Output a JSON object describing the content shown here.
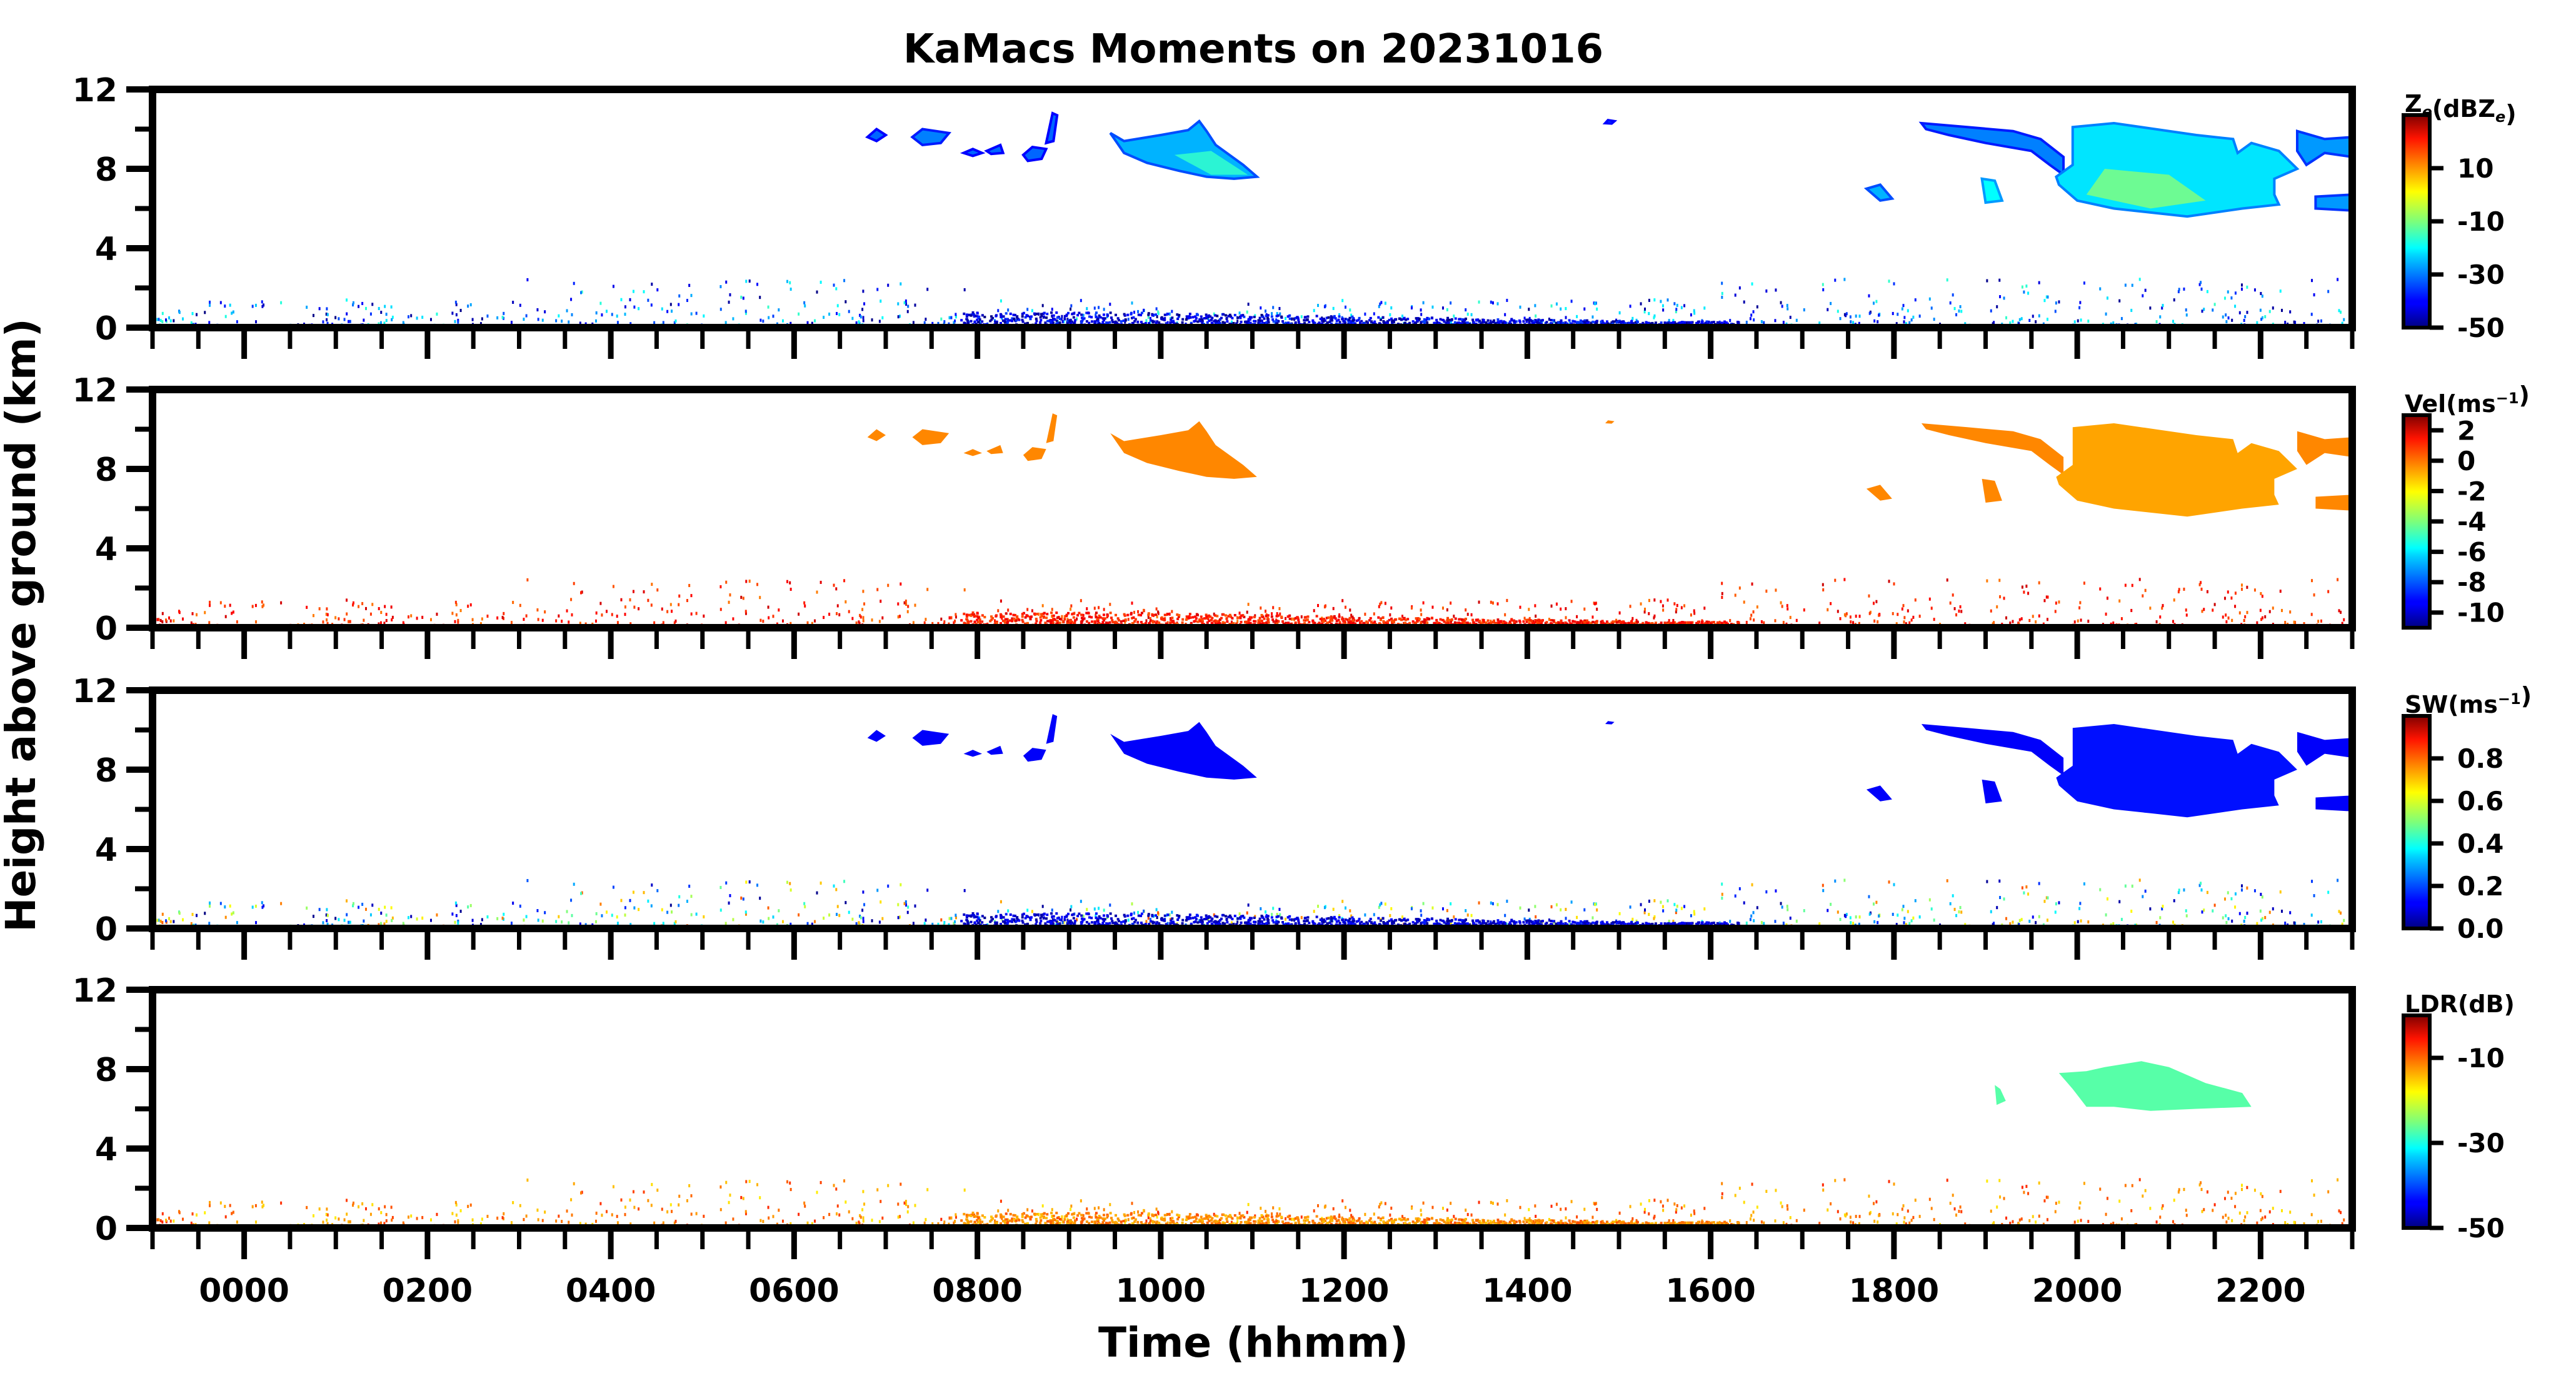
{
  "chart_data": {
    "type": "heatmap",
    "title": "KaMacs Moments on 20231016",
    "xlabel": "Time (hhmm)",
    "ylabel": "Height above ground (km)",
    "xlim_hours": [
      -1,
      23
    ],
    "x_major_ticks_hours": [
      0,
      2,
      4,
      6,
      8,
      10,
      12,
      14,
      16,
      18,
      20,
      22
    ],
    "x_tick_labels": [
      "0000",
      "0200",
      "0400",
      "0600",
      "0800",
      "1000",
      "1200",
      "1400",
      "1600",
      "1800",
      "2000",
      "2200"
    ],
    "x_minor_step_hours": 0.5,
    "ylim_km": [
      0,
      12
    ],
    "y_major_ticks": [
      0,
      4,
      8,
      12
    ],
    "y_tick_labels": [
      "0",
      "4",
      "8",
      "12"
    ],
    "y_minor_ticks": [
      2,
      6,
      10
    ],
    "colormap": "jet",
    "panels": [
      {
        "key": "ze",
        "colorbar_label": [
          {
            "t": "Z",
            "s": ""
          },
          {
            "t": "e",
            "s": "sub"
          },
          {
            "t": "(dBZ",
            "s": ""
          },
          {
            "t": "e",
            "s": "sub"
          },
          {
            "t": ")",
            "s": ""
          }
        ],
        "vmin": -50,
        "vmax": 30,
        "ticks": [
          10,
          -10,
          -30,
          -50
        ],
        "tick_labels": [
          "10",
          "-10",
          "-30",
          "-50"
        ],
        "clutter_range": [
          -50,
          -15
        ],
        "surface_band_range": [
          -50,
          -35
        ]
      },
      {
        "key": "vel",
        "colorbar_label": [
          {
            "t": "Vel(ms",
            "s": ""
          },
          {
            "t": "−1",
            "s": "sup"
          },
          {
            "t": ")",
            "s": ""
          }
        ],
        "vmin": -11,
        "vmax": 3,
        "ticks": [
          2,
          0,
          -2,
          -4,
          -6,
          -8,
          -10
        ],
        "tick_labels": [
          "2",
          "0",
          "-2",
          "-4",
          "-6",
          "-8",
          "-10"
        ],
        "clutter_range": [
          -0.5,
          2
        ],
        "surface_band_range": [
          0,
          1.8
        ]
      },
      {
        "key": "sw",
        "colorbar_label": [
          {
            "t": "SW(ms",
            "s": ""
          },
          {
            "t": "−1",
            "s": "sup"
          },
          {
            "t": ")",
            "s": ""
          }
        ],
        "vmin": 0,
        "vmax": 1.0,
        "ticks": [
          0.8,
          0.6,
          0.4,
          0.2,
          0.0
        ],
        "tick_labels": [
          "0.8",
          "0.6",
          "0.4",
          "0.2",
          "0.0"
        ],
        "clutter_range": [
          0.0,
          0.8
        ],
        "surface_band_range": [
          0.02,
          0.15
        ]
      },
      {
        "key": "ldr",
        "colorbar_label": [
          {
            "t": "LDR(dB)",
            "s": ""
          }
        ],
        "vmin": -50,
        "vmax": 0,
        "ticks": [
          -10,
          -30,
          -50
        ],
        "tick_labels": [
          "-10",
          "-30",
          "-50"
        ],
        "clutter_range": [
          -18,
          -8
        ],
        "surface_band_range": [
          -16,
          -10
        ]
      }
    ],
    "surface_band": {
      "t_start": 7.8,
      "t_end": 16.3,
      "top_km": 0.7
    },
    "clutter": {
      "t_start": -1,
      "t_end": 23,
      "top_km": 2.2,
      "count": 900
    },
    "echoes": [
      {
        "name": "cirrus-0930-1100",
        "poly": [
          [
            9.45,
            9.8
          ],
          [
            9.6,
            9.4
          ],
          [
            10.0,
            9.7
          ],
          [
            10.3,
            9.95
          ],
          [
            10.42,
            10.4
          ],
          [
            10.5,
            9.9
          ],
          [
            10.6,
            9.2
          ],
          [
            10.9,
            8.2
          ],
          [
            11.05,
            7.6
          ],
          [
            10.8,
            7.5
          ],
          [
            10.5,
            7.6
          ],
          [
            10.2,
            7.9
          ],
          [
            9.85,
            8.3
          ],
          [
            9.6,
            8.8
          ]
        ],
        "values": {
          "ze": -26,
          "vel": -0.6,
          "sw": 0.12
        },
        "core": {
          "poly": [
            [
              10.15,
              8.7
            ],
            [
              10.55,
              8.9
            ],
            [
              10.95,
              7.7
            ],
            [
              10.55,
              7.7
            ]
          ],
          "ze": -16
        }
      },
      {
        "name": "cloud-0720",
        "poly": [
          [
            7.29,
            9.6
          ],
          [
            7.4,
            10.0
          ],
          [
            7.55,
            9.9
          ],
          [
            7.69,
            9.8
          ],
          [
            7.6,
            9.3
          ],
          [
            7.4,
            9.2
          ]
        ],
        "values": {
          "ze": -30,
          "vel": -0.6,
          "sw": 0.12
        }
      },
      {
        "name": "cloud-0650",
        "poly": [
          [
            6.8,
            9.6
          ],
          [
            6.9,
            10.0
          ],
          [
            7.0,
            9.7
          ],
          [
            6.9,
            9.4
          ]
        ],
        "values": {
          "ze": -32,
          "vel": -0.6,
          "sw": 0.12
        }
      },
      {
        "name": "cloud-0750",
        "poly": [
          [
            7.85,
            8.8
          ],
          [
            7.95,
            9.0
          ],
          [
            8.05,
            8.8
          ],
          [
            7.95,
            8.65
          ]
        ],
        "values": {
          "ze": -32,
          "vel": -0.6,
          "sw": 0.12
        }
      },
      {
        "name": "cloud-0810",
        "poly": [
          [
            8.1,
            8.9
          ],
          [
            8.25,
            9.2
          ],
          [
            8.28,
            8.8
          ],
          [
            8.15,
            8.75
          ]
        ],
        "values": {
          "ze": -32,
          "vel": -0.6,
          "sw": 0.12
        }
      },
      {
        "name": "cloud-0830",
        "poly": [
          [
            8.5,
            8.7
          ],
          [
            8.6,
            9.1
          ],
          [
            8.75,
            9.0
          ],
          [
            8.7,
            8.5
          ],
          [
            8.55,
            8.4
          ]
        ],
        "values": {
          "ze": -32,
          "vel": -0.6,
          "sw": 0.12
        }
      },
      {
        "name": "streak-0850",
        "poly": [
          [
            8.75,
            9.3
          ],
          [
            8.82,
            10.8
          ],
          [
            8.87,
            10.7
          ],
          [
            8.83,
            9.4
          ]
        ],
        "values": {
          "ze": -32,
          "vel": -0.6,
          "sw": 0.12
        }
      },
      {
        "name": "speck-1450",
        "poly": [
          [
            14.85,
            10.3
          ],
          [
            14.88,
            10.45
          ],
          [
            14.95,
            10.4
          ],
          [
            14.92,
            10.28
          ]
        ],
        "values": {
          "ze": -32,
          "vel": -0.6,
          "sw": 0.12
        }
      },
      {
        "name": "band-1820",
        "poly": [
          [
            18.3,
            10.3
          ],
          [
            18.8,
            10.1
          ],
          [
            19.3,
            9.9
          ],
          [
            19.6,
            9.5
          ],
          [
            19.85,
            8.6
          ],
          [
            19.85,
            7.7
          ],
          [
            19.7,
            8.2
          ],
          [
            19.5,
            8.9
          ],
          [
            19.0,
            9.3
          ],
          [
            18.6,
            9.7
          ],
          [
            18.35,
            10.0
          ]
        ],
        "values": {
          "ze": -30,
          "vel": -0.6,
          "sw": 0.12
        }
      },
      {
        "name": "main-cloud-2000",
        "poly": [
          [
            19.95,
            10.1
          ],
          [
            20.4,
            10.3
          ],
          [
            20.85,
            10.0
          ],
          [
            21.3,
            9.7
          ],
          [
            21.7,
            9.5
          ],
          [
            21.75,
            8.8
          ],
          [
            21.9,
            9.3
          ],
          [
            22.2,
            8.9
          ],
          [
            22.4,
            8.0
          ],
          [
            22.15,
            7.5
          ],
          [
            22.15,
            6.7
          ],
          [
            22.2,
            6.2
          ],
          [
            21.8,
            6.0
          ],
          [
            21.2,
            5.6
          ],
          [
            20.8,
            5.8
          ],
          [
            20.4,
            6.0
          ],
          [
            20.0,
            6.4
          ],
          [
            19.8,
            7.2
          ],
          [
            19.77,
            7.6
          ],
          [
            19.95,
            8.2
          ]
        ],
        "values": {
          "ze": -22,
          "vel": -1.0,
          "sw": 0.14
        },
        "core": {
          "poly": [
            [
              20.1,
              6.7
            ],
            [
              20.3,
              8.0
            ],
            [
              21.0,
              7.7
            ],
            [
              21.4,
              6.4
            ],
            [
              20.8,
              6.0
            ]
          ],
          "ze": -10
        }
      },
      {
        "name": "cloud-2230",
        "poly": [
          [
            22.4,
            9.9
          ],
          [
            22.7,
            9.5
          ],
          [
            23.0,
            9.6
          ],
          [
            23.0,
            8.6
          ],
          [
            22.7,
            8.8
          ],
          [
            22.5,
            8.2
          ],
          [
            22.4,
            8.9
          ]
        ],
        "values": {
          "ze": -28,
          "vel": -0.6,
          "sw": 0.12
        }
      },
      {
        "name": "strip-2240",
        "poly": [
          [
            22.6,
            6.6
          ],
          [
            23.0,
            6.7
          ],
          [
            23.0,
            5.9
          ],
          [
            22.6,
            6.0
          ]
        ],
        "values": {
          "ze": -28,
          "vel": -0.6,
          "sw": 0.12
        }
      },
      {
        "name": "blob-1750",
        "poly": [
          [
            17.7,
            7.0
          ],
          [
            17.85,
            7.2
          ],
          [
            17.98,
            6.5
          ],
          [
            17.85,
            6.4
          ]
        ],
        "values": {
          "ze": -26,
          "vel": -0.6,
          "sw": 0.12
        }
      },
      {
        "name": "blob-1900",
        "poly": [
          [
            18.96,
            7.5
          ],
          [
            19.1,
            7.4
          ],
          [
            19.18,
            6.4
          ],
          [
            19.0,
            6.3
          ]
        ],
        "values": {
          "ze": -20,
          "vel": -0.6,
          "sw": 0.12
        }
      }
    ],
    "ldr_echoes": [
      {
        "name": "ldr-main-2030",
        "poly": [
          [
            19.8,
            7.8
          ],
          [
            20.1,
            7.9
          ],
          [
            20.3,
            8.1
          ],
          [
            20.7,
            8.4
          ],
          [
            21.0,
            8.1
          ],
          [
            21.4,
            7.3
          ],
          [
            21.8,
            6.8
          ],
          [
            21.9,
            6.1
          ],
          [
            21.3,
            6.0
          ],
          [
            20.8,
            5.9
          ],
          [
            20.4,
            6.1
          ],
          [
            20.1,
            6.1
          ],
          [
            19.95,
            7.0
          ]
        ],
        "value": -27
      },
      {
        "name": "ldr-blob-1910",
        "poly": [
          [
            19.1,
            7.2
          ],
          [
            19.16,
            7.0
          ],
          [
            19.22,
            6.4
          ],
          [
            19.12,
            6.2
          ]
        ],
        "value": -27
      }
    ]
  }
}
